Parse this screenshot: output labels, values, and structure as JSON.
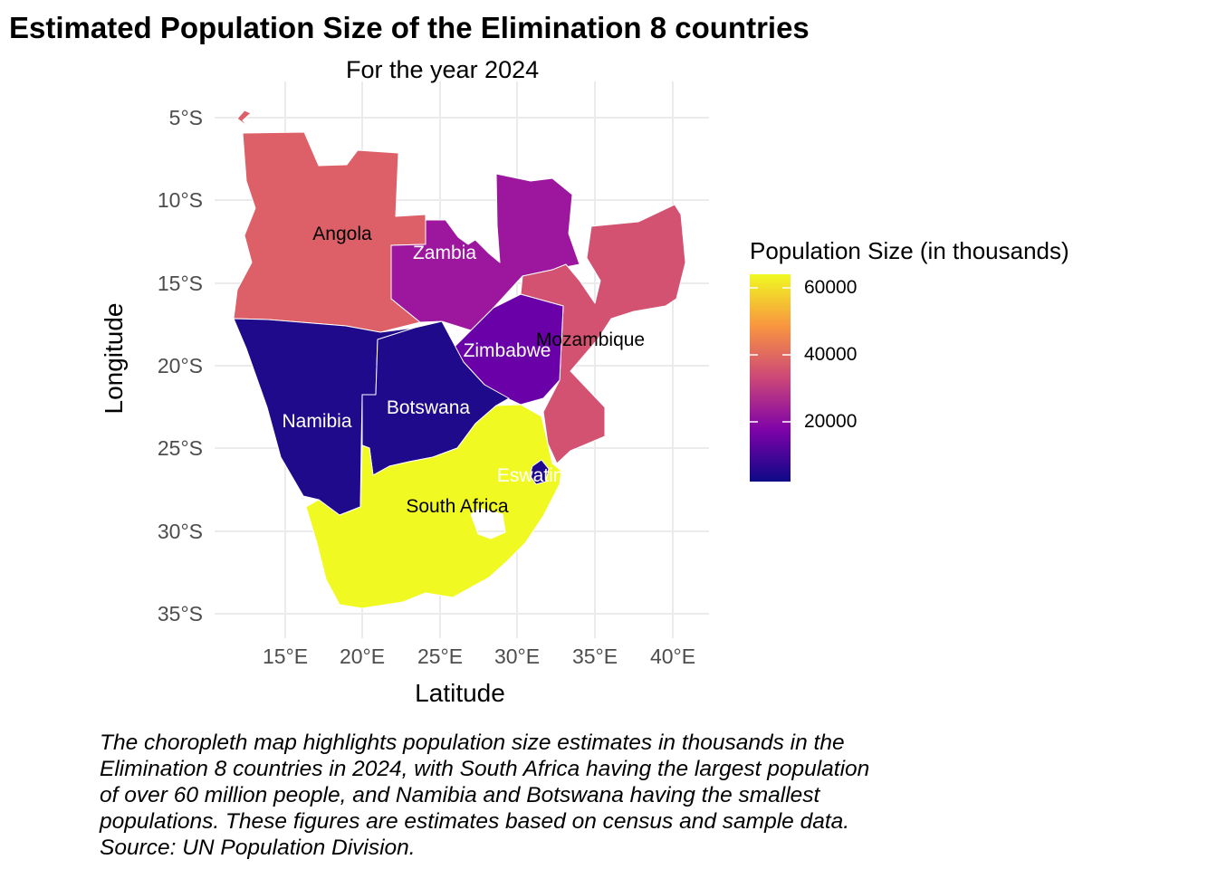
{
  "title": "Estimated Population Size of the Elimination 8 countries",
  "subtitle": "For the year 2024",
  "chart_data": {
    "type": "choropleth",
    "xlabel": "Latitude",
    "ylabel": "Longitude",
    "x_ticks": [
      "15°E",
      "20°E",
      "25°E",
      "30°E",
      "35°E",
      "40°E"
    ],
    "y_ticks": [
      "5°S",
      "10°S",
      "15°S",
      "20°S",
      "25°S",
      "30°S",
      "35°S"
    ],
    "grid": true,
    "legend": {
      "title": "Population Size (in thousands)",
      "labels": [
        "60000",
        "40000",
        "20000"
      ],
      "colors": [
        "#F0F921",
        "#F89540",
        "#CC4778",
        "#7E03A8",
        "#0D0887"
      ],
      "placement": "right"
    },
    "regions": [
      {
        "name": "Angola",
        "color": "#DD5F67"
      },
      {
        "name": "Zambia",
        "color": "#9C179E"
      },
      {
        "name": "Mozambique",
        "color": "#D35171"
      },
      {
        "name": "Zimbabwe",
        "color": "#6A00A8"
      },
      {
        "name": "Namibia",
        "color": "#1F0A8C"
      },
      {
        "name": "Botswana",
        "color": "#1F0A8C"
      },
      {
        "name": "South Africa",
        "color": "#F0F921"
      },
      {
        "name": "Eswatini",
        "color": "#1F0A8C"
      }
    ]
  },
  "caption": "The choropleth map highlights population size estimates in thousands in the\nElimination 8 countries in 2024, with South Africa having the largest population\nof over 60 million people, and Namibia and Botswana having the smallest\npopulations. These figures are estimates based on census and sample data.\nSource: UN Population Division."
}
